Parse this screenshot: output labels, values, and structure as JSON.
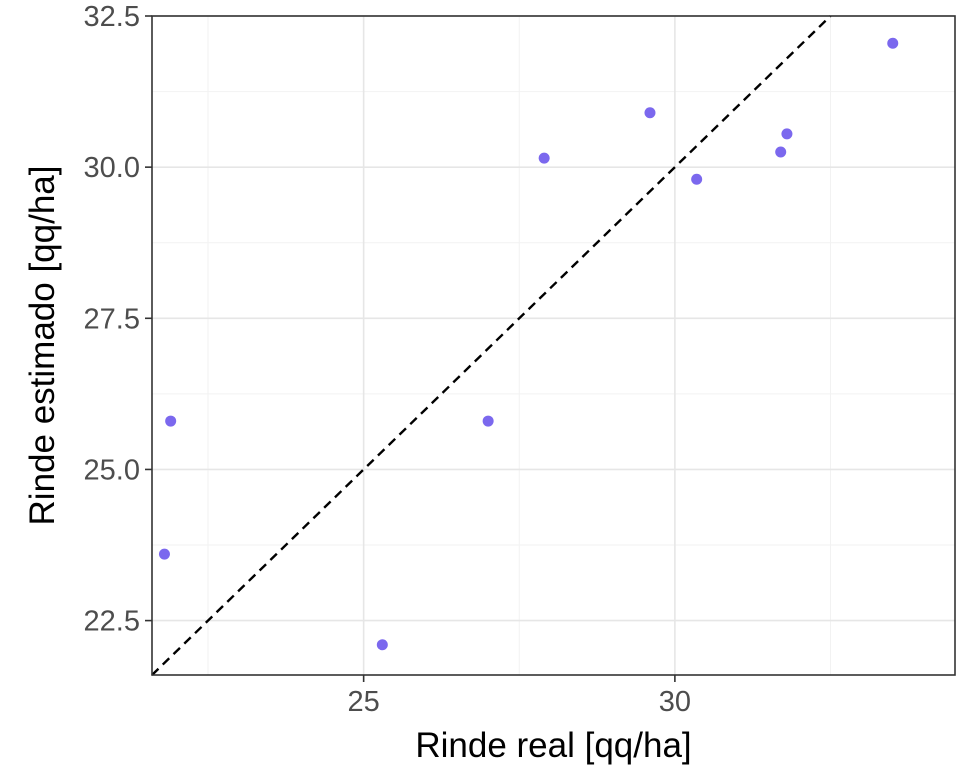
{
  "chart_data": {
    "type": "scatter",
    "title": "",
    "xlabel": "Rinde real [qq/ha]",
    "ylabel": "Rinde estimado [qq/ha]",
    "xlim": [
      21.6,
      34.5
    ],
    "ylim": [
      21.6,
      32.5
    ],
    "x_ticks": [
      25,
      30
    ],
    "x_tick_labels": [
      "25",
      "30"
    ],
    "y_ticks": [
      22.5,
      25.0,
      27.5,
      30.0,
      32.5
    ],
    "y_tick_labels": [
      "22.5",
      "25.0",
      "27.5",
      "30.0",
      "32.5"
    ],
    "grid": true,
    "point_color": "#7b68ee",
    "reference_line": {
      "type": "identity",
      "style": "dashed",
      "color": "#000000"
    },
    "series": [
      {
        "points": [
          {
            "x": 21.8,
            "y": 23.6
          },
          {
            "x": 21.9,
            "y": 25.8
          },
          {
            "x": 25.3,
            "y": 22.1
          },
          {
            "x": 27.0,
            "y": 25.8
          },
          {
            "x": 27.9,
            "y": 30.15
          },
          {
            "x": 29.6,
            "y": 30.9
          },
          {
            "x": 30.35,
            "y": 29.8
          },
          {
            "x": 31.7,
            "y": 30.25
          },
          {
            "x": 31.8,
            "y": 30.55
          },
          {
            "x": 33.5,
            "y": 32.05
          }
        ]
      }
    ]
  }
}
